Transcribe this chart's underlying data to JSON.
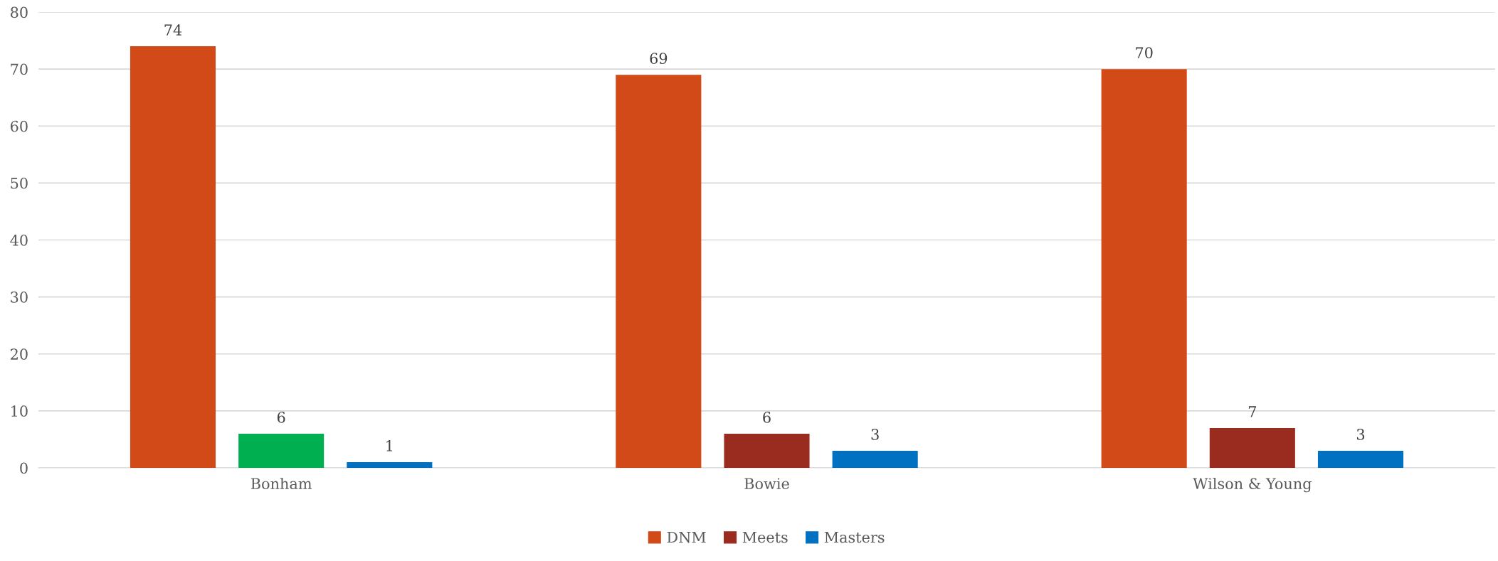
{
  "chart_data": {
    "type": "bar",
    "categories": [
      "Bonham",
      "Bowie",
      "Wilson & Young"
    ],
    "series": [
      {
        "name": "DNM",
        "color": "#d24a17",
        "values": [
          74,
          69,
          70
        ]
      },
      {
        "name": "Meets",
        "color": "#9a2b1f",
        "colors": [
          "#00b050",
          "#9a2b1f",
          "#9a2b1f"
        ],
        "values": [
          6,
          6,
          7
        ]
      },
      {
        "name": "Masters",
        "color": "#0070c0",
        "values": [
          1,
          3,
          3
        ]
      }
    ],
    "ylim": [
      0,
      80
    ],
    "yticks": [
      0,
      10,
      20,
      30,
      40,
      50,
      60,
      70,
      80
    ],
    "grid": "y",
    "legend": "bottom",
    "data_labels": true
  }
}
